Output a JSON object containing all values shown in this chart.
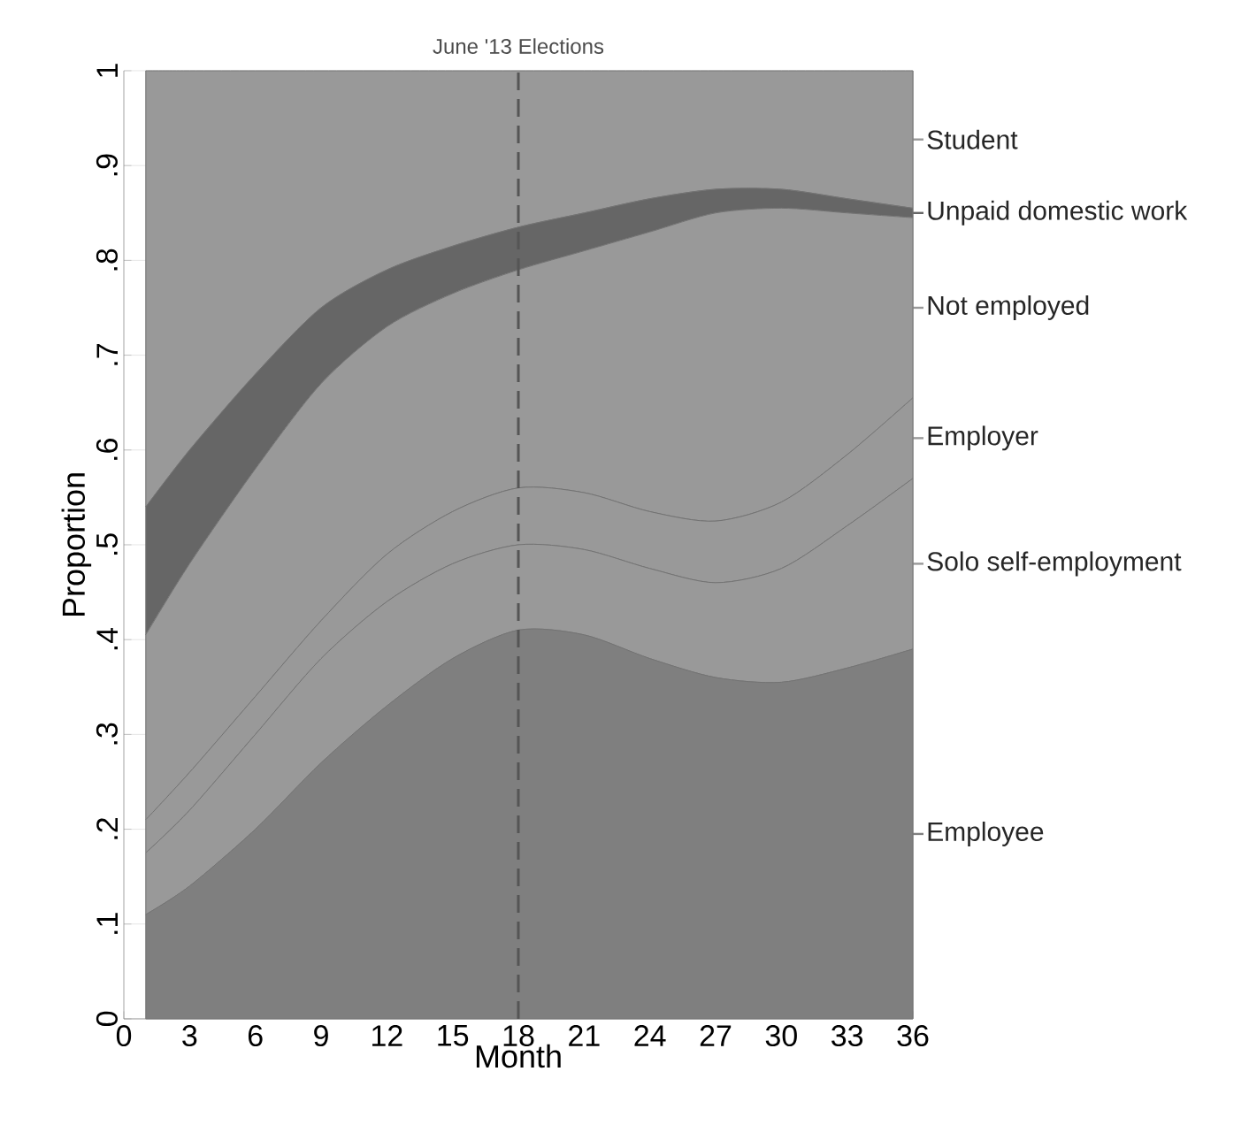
{
  "chart_data": {
    "type": "area",
    "stacked": true,
    "xlabel": "Month",
    "ylabel": "Proportion",
    "x": [
      1,
      3,
      6,
      9,
      12,
      15,
      18,
      21,
      24,
      27,
      30,
      33,
      36
    ],
    "series": [
      {
        "name": "Employee",
        "color": "#7f7f7f",
        "values": [
          0.11,
          0.14,
          0.2,
          0.27,
          0.33,
          0.38,
          0.41,
          0.405,
          0.38,
          0.36,
          0.355,
          0.37,
          0.39
        ]
      },
      {
        "name": "Solo self-employment",
        "color": "#999999",
        "values": [
          0.065,
          0.08,
          0.1,
          0.11,
          0.11,
          0.1,
          0.09,
          0.09,
          0.095,
          0.1,
          0.12,
          0.15,
          0.18
        ]
      },
      {
        "name": "Employer",
        "color": "#999999",
        "values": [
          0.035,
          0.04,
          0.04,
          0.04,
          0.05,
          0.055,
          0.06,
          0.06,
          0.06,
          0.065,
          0.07,
          0.075,
          0.085
        ]
      },
      {
        "name": "Not employed",
        "color": "#999999",
        "values": [
          0.195,
          0.22,
          0.24,
          0.25,
          0.24,
          0.23,
          0.23,
          0.255,
          0.295,
          0.325,
          0.31,
          0.255,
          0.19
        ]
      },
      {
        "name": "Unpaid domestic work",
        "color": "#666666",
        "values": [
          0.135,
          0.12,
          0.1,
          0.08,
          0.06,
          0.05,
          0.045,
          0.04,
          0.035,
          0.025,
          0.02,
          0.015,
          0.01
        ]
      },
      {
        "name": "Student",
        "color": "#999999",
        "values": [
          0.46,
          0.4,
          0.32,
          0.25,
          0.21,
          0.185,
          0.165,
          0.15,
          0.135,
          0.125,
          0.125,
          0.135,
          0.145
        ]
      }
    ],
    "xlim": [
      0,
      36
    ],
    "ylim": [
      0,
      1
    ],
    "xticks": [
      0,
      3,
      6,
      9,
      12,
      15,
      18,
      21,
      24,
      27,
      30,
      33,
      36
    ],
    "yticks": [
      0,
      {
        "value": 0.1,
        "label": ".1"
      },
      {
        "value": 0.2,
        "label": ".2"
      },
      {
        "value": 0.3,
        "label": ".3"
      },
      {
        "value": 0.4,
        "label": ".4"
      },
      {
        "value": 0.5,
        "label": ".5"
      },
      {
        "value": 0.6,
        "label": ".6"
      },
      {
        "value": 0.7,
        "label": ".7"
      },
      {
        "value": 0.8,
        "label": ".8"
      },
      {
        "value": 0.9,
        "label": ".9"
      },
      1
    ],
    "ref_lines": [
      {
        "axis": "x",
        "value": 18,
        "label": "June '13 Elections",
        "color": "#555555",
        "line_style": "dashed"
      }
    ],
    "grid": "y",
    "legend": "right"
  }
}
